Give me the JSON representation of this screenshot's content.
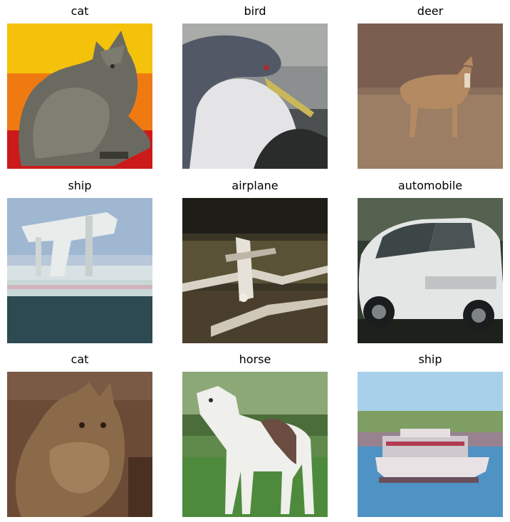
{
  "figure": {
    "panels": [
      {
        "label": "cat"
      },
      {
        "label": "bird"
      },
      {
        "label": "deer"
      },
      {
        "label": "ship"
      },
      {
        "label": "airplane"
      },
      {
        "label": "automobile"
      },
      {
        "label": "cat"
      },
      {
        "label": "horse"
      },
      {
        "label": "ship"
      }
    ]
  }
}
